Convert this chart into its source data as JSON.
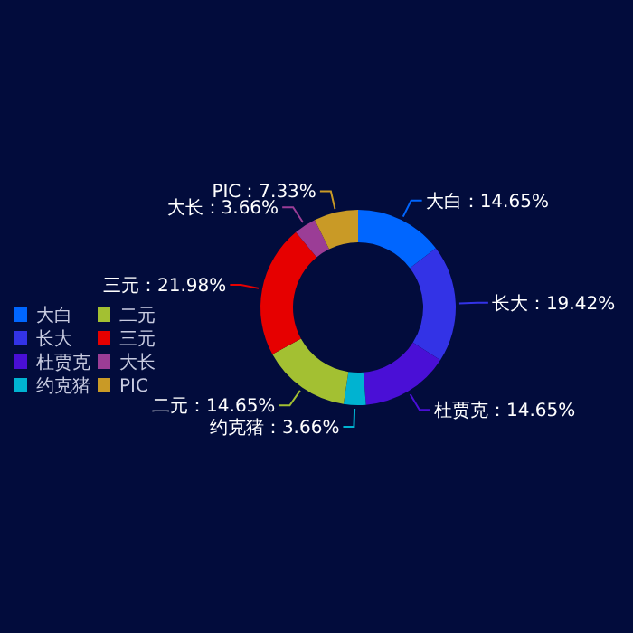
{
  "chart_data": {
    "type": "donut",
    "categories": [
      "大白",
      "长大",
      "杜贾克",
      "约克猪",
      "二元",
      "三元",
      "大长",
      "PIC"
    ],
    "values": [
      14.65,
      19.42,
      14.65,
      3.66,
      14.65,
      21.98,
      3.66,
      7.33
    ],
    "colors": [
      "#0066ff",
      "#3333e6",
      "#4a0fd6",
      "#00b3d1",
      "#a3c032",
      "#e60000",
      "#9b3d96",
      "#c99a26"
    ],
    "value_labels": [
      "大白：14.65%",
      "长大：19.42%",
      "杜贾克：14.65%",
      "约克猪：3.66%",
      "二元：14.65%",
      "三元：21.98%",
      "大长：3.66%",
      "PIC：7.33%"
    ],
    "legend": "left"
  }
}
